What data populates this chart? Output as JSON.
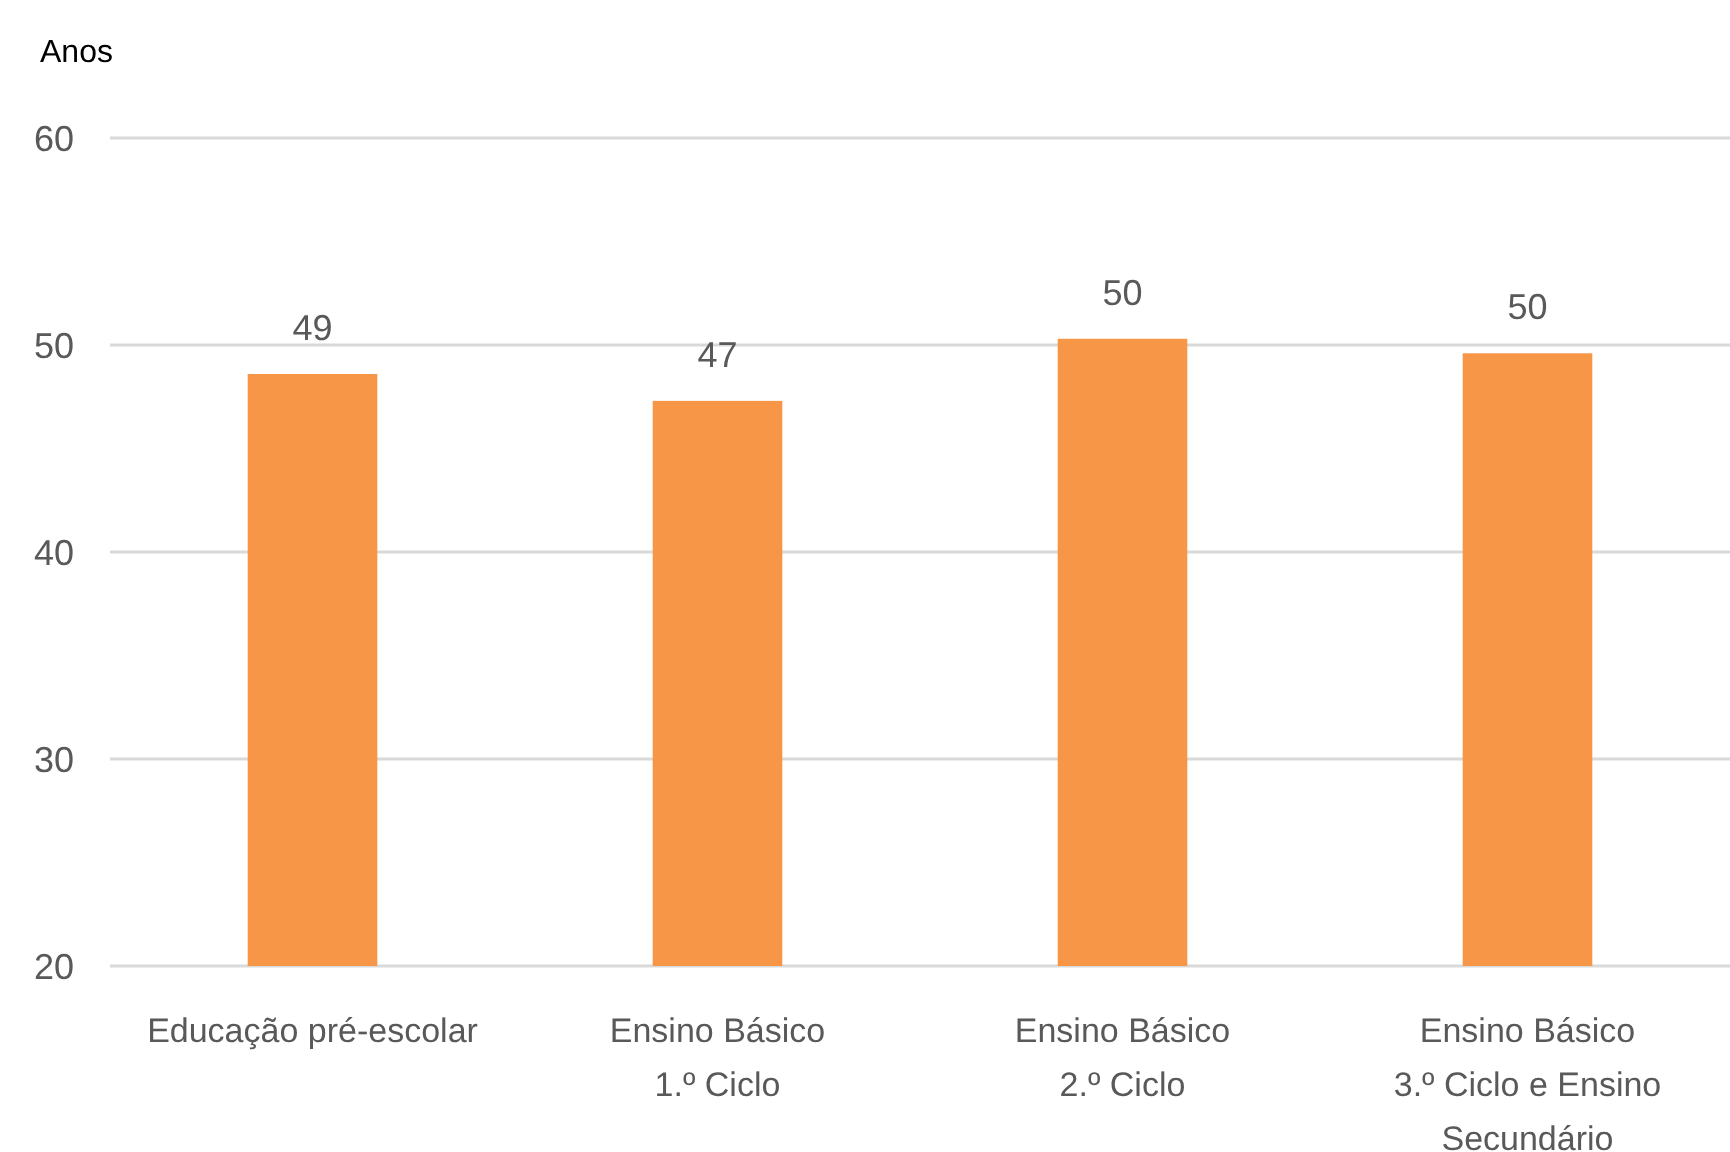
{
  "chart_data": {
    "type": "bar",
    "ylabel": "Anos",
    "categories": [
      "Educação pré-escolar",
      "Ensino Básico\n1.º Ciclo",
      "Ensino Básico\n2.º Ciclo",
      "Ensino Básico\n3.º Ciclo e Ensino\nSecundário"
    ],
    "values": [
      48.6,
      47.3,
      50.3,
      49.6
    ],
    "value_labels": [
      "49",
      "47",
      "50",
      "50"
    ],
    "color": "#f79646",
    "ylim": [
      20,
      60
    ],
    "yticks": [
      20,
      30,
      40,
      50,
      60
    ],
    "grid": "y"
  }
}
